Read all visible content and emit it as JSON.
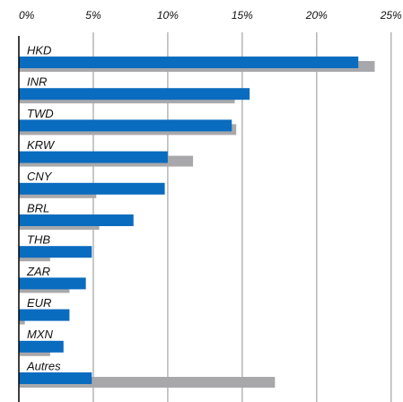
{
  "chart_data": {
    "type": "hbar",
    "categories": [
      "HKD",
      "INR",
      "TWD",
      "KRW",
      "CNY",
      "BRL",
      "THB",
      "ZAR",
      "EUR",
      "MXN",
      "Autres"
    ],
    "series": [
      {
        "color": "#a8a8ab",
        "values": [
          23.9,
          14.5,
          14.6,
          11.7,
          5.2,
          5.4,
          2.1,
          3.4,
          0.4,
          2.1,
          17.2
        ]
      },
      {
        "color": "#0a6cbf",
        "values": [
          22.8,
          15.5,
          14.3,
          10.0,
          9.8,
          7.7,
          4.9,
          4.5,
          3.4,
          3.0,
          4.9
        ]
      }
    ],
    "xlim": [
      0,
      25.8
    ],
    "xticks": [
      {
        "value": 0,
        "label": "0%"
      },
      {
        "value": 5,
        "label": "5%"
      },
      {
        "value": 10,
        "label": "10%"
      },
      {
        "value": 15,
        "label": "15%"
      },
      {
        "value": 20,
        "label": "20%"
      },
      {
        "value": 25,
        "label": "25%"
      }
    ],
    "grid": true
  }
}
